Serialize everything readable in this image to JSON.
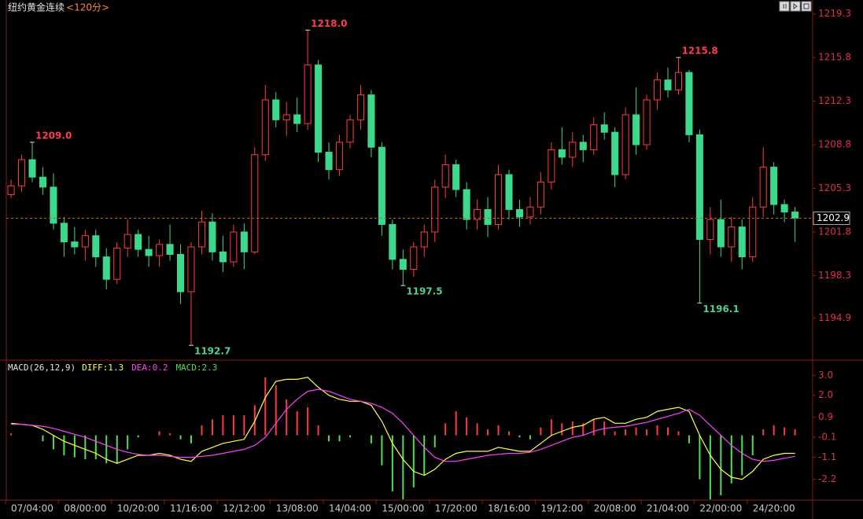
{
  "chart_data": [
    {
      "type": "candlestick",
      "title": "纽约黄金连续",
      "subtitle": "<120分>",
      "categories": [
        null,
        null,
        "07/04:00",
        null,
        null,
        null,
        null,
        "08/00:00",
        null,
        null,
        null,
        null,
        "10/20:00",
        null,
        null,
        null,
        null,
        "11/16:00",
        null,
        null,
        null,
        null,
        "12/12:00",
        null,
        null,
        null,
        null,
        "13/08:00",
        null,
        null,
        null,
        null,
        "14/04:00",
        null,
        null,
        null,
        null,
        "15/00:00",
        null,
        null,
        null,
        null,
        "17/20:00",
        null,
        null,
        null,
        null,
        "18/16:00",
        null,
        null,
        null,
        null,
        "19/12:00",
        null,
        null,
        null,
        null,
        "20/08:00",
        null,
        null,
        null,
        null,
        "21/04:00",
        null,
        null,
        null,
        null,
        "22/00:00",
        null,
        null,
        null,
        null,
        "24/20:00",
        null,
        null
      ],
      "open": [
        1204.8,
        1205.5,
        1207.6,
        1206.2,
        1205.4,
        1202.5,
        1201.0,
        1200.6,
        1201.5,
        1199.8,
        1198.0,
        1200.5,
        1201.6,
        1200.4,
        1199.9,
        1200.8,
        1200.0,
        1197.0,
        1200.6,
        1202.6,
        1200.2,
        1199.4,
        1201.8,
        1200.2,
        1208.0,
        1212.4,
        1210.8,
        1211.2,
        1210.5,
        1215.2,
        1208.2,
        1206.8,
        1209.0,
        1210.8,
        1212.8,
        1208.6,
        1202.4,
        1199.6,
        1198.8,
        1200.6,
        1201.8,
        1205.4,
        1207.2,
        1205.2,
        1202.8,
        1203.6,
        1202.4,
        1206.4,
        1203.6,
        1203.0,
        1203.8,
        1205.8,
        1208.4,
        1207.8,
        1209.0,
        1208.4,
        1210.4,
        1209.8,
        1206.4,
        1211.2,
        1208.8,
        1212.4,
        1214.0,
        1213.2,
        1214.6,
        1209.6,
        1201.2,
        1202.8,
        1200.6,
        1202.2,
        1199.8,
        1203.8,
        1207.0,
        1204.0,
        1203.4
      ],
      "high": [
        1206.0,
        1208.0,
        1209.0,
        1207.0,
        1206.5,
        1203.0,
        1202.2,
        1202.0,
        1202.0,
        1200.5,
        1201.0,
        1202.8,
        1202.0,
        1201.5,
        1201.2,
        1202.4,
        1200.8,
        1201.0,
        1203.5,
        1203.3,
        1201.5,
        1202.4,
        1202.5,
        1208.6,
        1213.6,
        1213.0,
        1212.2,
        1212.6,
        1218.0,
        1215.6,
        1209.0,
        1209.6,
        1211.2,
        1213.6,
        1213.2,
        1209.0,
        1202.8,
        1200.4,
        1201.0,
        1202.4,
        1206.0,
        1208.0,
        1207.6,
        1205.8,
        1204.4,
        1204.6,
        1207.2,
        1206.8,
        1204.4,
        1204.6,
        1206.6,
        1209.0,
        1210.2,
        1209.8,
        1209.6,
        1211.0,
        1211.4,
        1210.2,
        1211.8,
        1213.4,
        1212.8,
        1214.6,
        1215.0,
        1215.8,
        1214.8,
        1210.0,
        1203.8,
        1204.4,
        1203.0,
        1202.8,
        1204.6,
        1208.6,
        1207.4,
        1204.4,
        1203.8
      ],
      "low": [
        1204.5,
        1205.0,
        1205.8,
        1204.8,
        1202.0,
        1199.8,
        1200.0,
        1199.5,
        1199.0,
        1197.2,
        1197.6,
        1199.8,
        1199.8,
        1199.0,
        1199.0,
        1199.5,
        1196.0,
        1192.7,
        1200.0,
        1199.5,
        1198.6,
        1199.0,
        1198.8,
        1200.0,
        1207.5,
        1210.2,
        1209.5,
        1209.8,
        1210.0,
        1207.4,
        1206.0,
        1206.3,
        1208.5,
        1210.0,
        1207.8,
        1201.5,
        1198.8,
        1197.5,
        1198.2,
        1199.8,
        1201.0,
        1204.5,
        1204.6,
        1202.0,
        1202.0,
        1201.4,
        1202.0,
        1202.8,
        1202.2,
        1202.4,
        1203.2,
        1205.2,
        1207.2,
        1207.0,
        1207.4,
        1208.0,
        1209.2,
        1205.4,
        1206.0,
        1208.0,
        1208.4,
        1211.6,
        1212.6,
        1212.8,
        1209.0,
        1196.1,
        1200.0,
        1199.8,
        1199.4,
        1198.8,
        1199.4,
        1203.0,
        1203.2,
        1202.6,
        1201.0
      ],
      "close": [
        1205.5,
        1207.6,
        1206.2,
        1205.4,
        1202.5,
        1201.0,
        1200.6,
        1201.5,
        1199.8,
        1198.0,
        1200.5,
        1201.6,
        1200.4,
        1199.9,
        1200.8,
        1200.0,
        1197.0,
        1200.6,
        1202.6,
        1200.2,
        1199.4,
        1201.8,
        1200.2,
        1208.0,
        1212.4,
        1210.8,
        1211.2,
        1210.5,
        1215.2,
        1208.2,
        1206.8,
        1209.0,
        1210.8,
        1212.8,
        1208.6,
        1202.4,
        1199.6,
        1198.8,
        1200.6,
        1201.8,
        1205.4,
        1207.2,
        1205.2,
        1202.8,
        1203.6,
        1202.4,
        1206.4,
        1203.6,
        1203.0,
        1203.8,
        1205.8,
        1208.4,
        1207.8,
        1209.0,
        1208.4,
        1210.4,
        1209.8,
        1206.4,
        1211.2,
        1208.8,
        1212.4,
        1214.0,
        1213.2,
        1214.6,
        1209.6,
        1201.2,
        1202.8,
        1200.6,
        1202.2,
        1199.8,
        1203.8,
        1207.0,
        1204.0,
        1203.4,
        1202.9
      ],
      "up_color": "#ff3c3c",
      "down_color": "#3cd88c",
      "ylim": [
        1191.7,
        1220.1
      ],
      "yticks": [
        1219.3,
        1215.8,
        1212.3,
        1208.8,
        1205.3,
        1201.8,
        1198.3,
        1194.9
      ],
      "last_price": 1202.9,
      "annotations": [
        {
          "value": 1209,
          "label": "1209.0",
          "color": "#ff3c50"
        },
        {
          "value": 1218,
          "label": "1218.0",
          "color": "#ff3c50"
        },
        {
          "value": 1215.8,
          "label": "1215.8",
          "color": "#ff3c50"
        },
        {
          "value": 1192.7,
          "label": "1192.7",
          "color": "#50d090"
        },
        {
          "value": 1197.5,
          "label": "1197.5",
          "color": "#50d090"
        },
        {
          "value": 1196.1,
          "label": "1196.1",
          "color": "#50d090"
        }
      ]
    },
    {
      "type": "macd",
      "title": "MACD(26,12,9)",
      "ylim": [
        -3.2,
        3.6
      ],
      "yticks": [
        {
          "value": 3,
          "label": "3.0"
        },
        {
          "value": 2,
          "label": "2.0"
        },
        0.9,
        -0.1,
        -1.1,
        -2.2
      ],
      "series": [
        {
          "name": "DIFF:1.3",
          "style": "line",
          "color": "#ffff40",
          "values": [
            0.6,
            0.55,
            0.5,
            0.3,
            0,
            -0.3,
            -0.5,
            -0.7,
            -0.9,
            -1.2,
            -1.4,
            -1.2,
            -1,
            -1,
            -0.9,
            -1,
            -1.2,
            -1.3,
            -0.8,
            -0.6,
            -0.4,
            -0.3,
            -0.2,
            0.7,
            1.9,
            2.7,
            2.8,
            2.8,
            2.9,
            2.4,
            2.0,
            1.8,
            1.7,
            1.7,
            1.5,
            0.7,
            -0.4,
            -1.2,
            -1.8,
            -2.0,
            -1.7,
            -1.2,
            -0.9,
            -0.8,
            -0.8,
            -0.8,
            -0.6,
            -0.7,
            -0.8,
            -0.8,
            -0.4,
            0,
            0.2,
            0.4,
            0.5,
            0.8,
            0.9,
            0.6,
            0.6,
            0.8,
            0.9,
            1.2,
            1.3,
            1.4,
            1.2,
            0,
            -1,
            -1.7,
            -2.1,
            -2.2,
            -1.8,
            -1.2,
            -1,
            -0.9,
            -0.9
          ]
        },
        {
          "name": "DEA:0.2",
          "style": "line",
          "color": "#ff40ff",
          "values": [
            0.55,
            0.55,
            0.5,
            0.45,
            0.35,
            0.2,
            0.05,
            -0.1,
            -0.3,
            -0.5,
            -0.7,
            -0.85,
            -0.95,
            -1,
            -1,
            -1.05,
            -1.1,
            -1.1,
            -1.05,
            -1,
            -0.9,
            -0.8,
            -0.7,
            -0.5,
            -0.1,
            0.6,
            1.3,
            1.8,
            2.2,
            2.3,
            2.2,
            2.0,
            1.8,
            1.7,
            1.6,
            1.4,
            1.1,
            0.6,
            0,
            -0.6,
            -1.1,
            -1.3,
            -1.3,
            -1.2,
            -1.1,
            -1,
            -0.95,
            -0.9,
            -0.9,
            -0.85,
            -0.7,
            -0.5,
            -0.3,
            -0.1,
            0,
            0.2,
            0.35,
            0.4,
            0.45,
            0.55,
            0.65,
            0.8,
            0.95,
            1.1,
            1.3,
            1,
            0.5,
            0,
            -0.5,
            -0.9,
            -1.2,
            -1.3,
            -1.25,
            -1.15,
            -1.05
          ]
        },
        {
          "name": "MACD:2.3",
          "style": "histogram",
          "color": "#50e050",
          "up_color": "#ff3c3c",
          "values": [
            0.1,
            0.0,
            0.0,
            -0.3,
            -0.7,
            -1.0,
            -1.1,
            -1.2,
            -1.2,
            -1.4,
            -1.4,
            -0.7,
            -0.1,
            0.0,
            0.2,
            0.1,
            -0.2,
            -0.4,
            0.5,
            0.8,
            1.0,
            1.0,
            1.0,
            1.5,
            2.9,
            2.5,
            1.8,
            1.2,
            1.4,
            0.5,
            -0.3,
            -0.3,
            -0.1,
            0,
            -0.4,
            -1.5,
            -2.8,
            -3.2,
            -2.6,
            -2,
            -0.6,
            0.6,
            1.2,
            0.9,
            0.6,
            0.3,
            0.5,
            0.2,
            -0.1,
            -0.2,
            0.4,
            0.8,
            0.6,
            0.7,
            0.6,
            0.8,
            0.7,
            0.2,
            0.3,
            0.4,
            0.3,
            0.5,
            0.4,
            0.2,
            -0.4,
            -2.2,
            -3.2,
            -3,
            -2.4,
            -2,
            -1,
            0.3,
            0.5,
            0.4,
            0.3
          ]
        }
      ]
    }
  ]
}
